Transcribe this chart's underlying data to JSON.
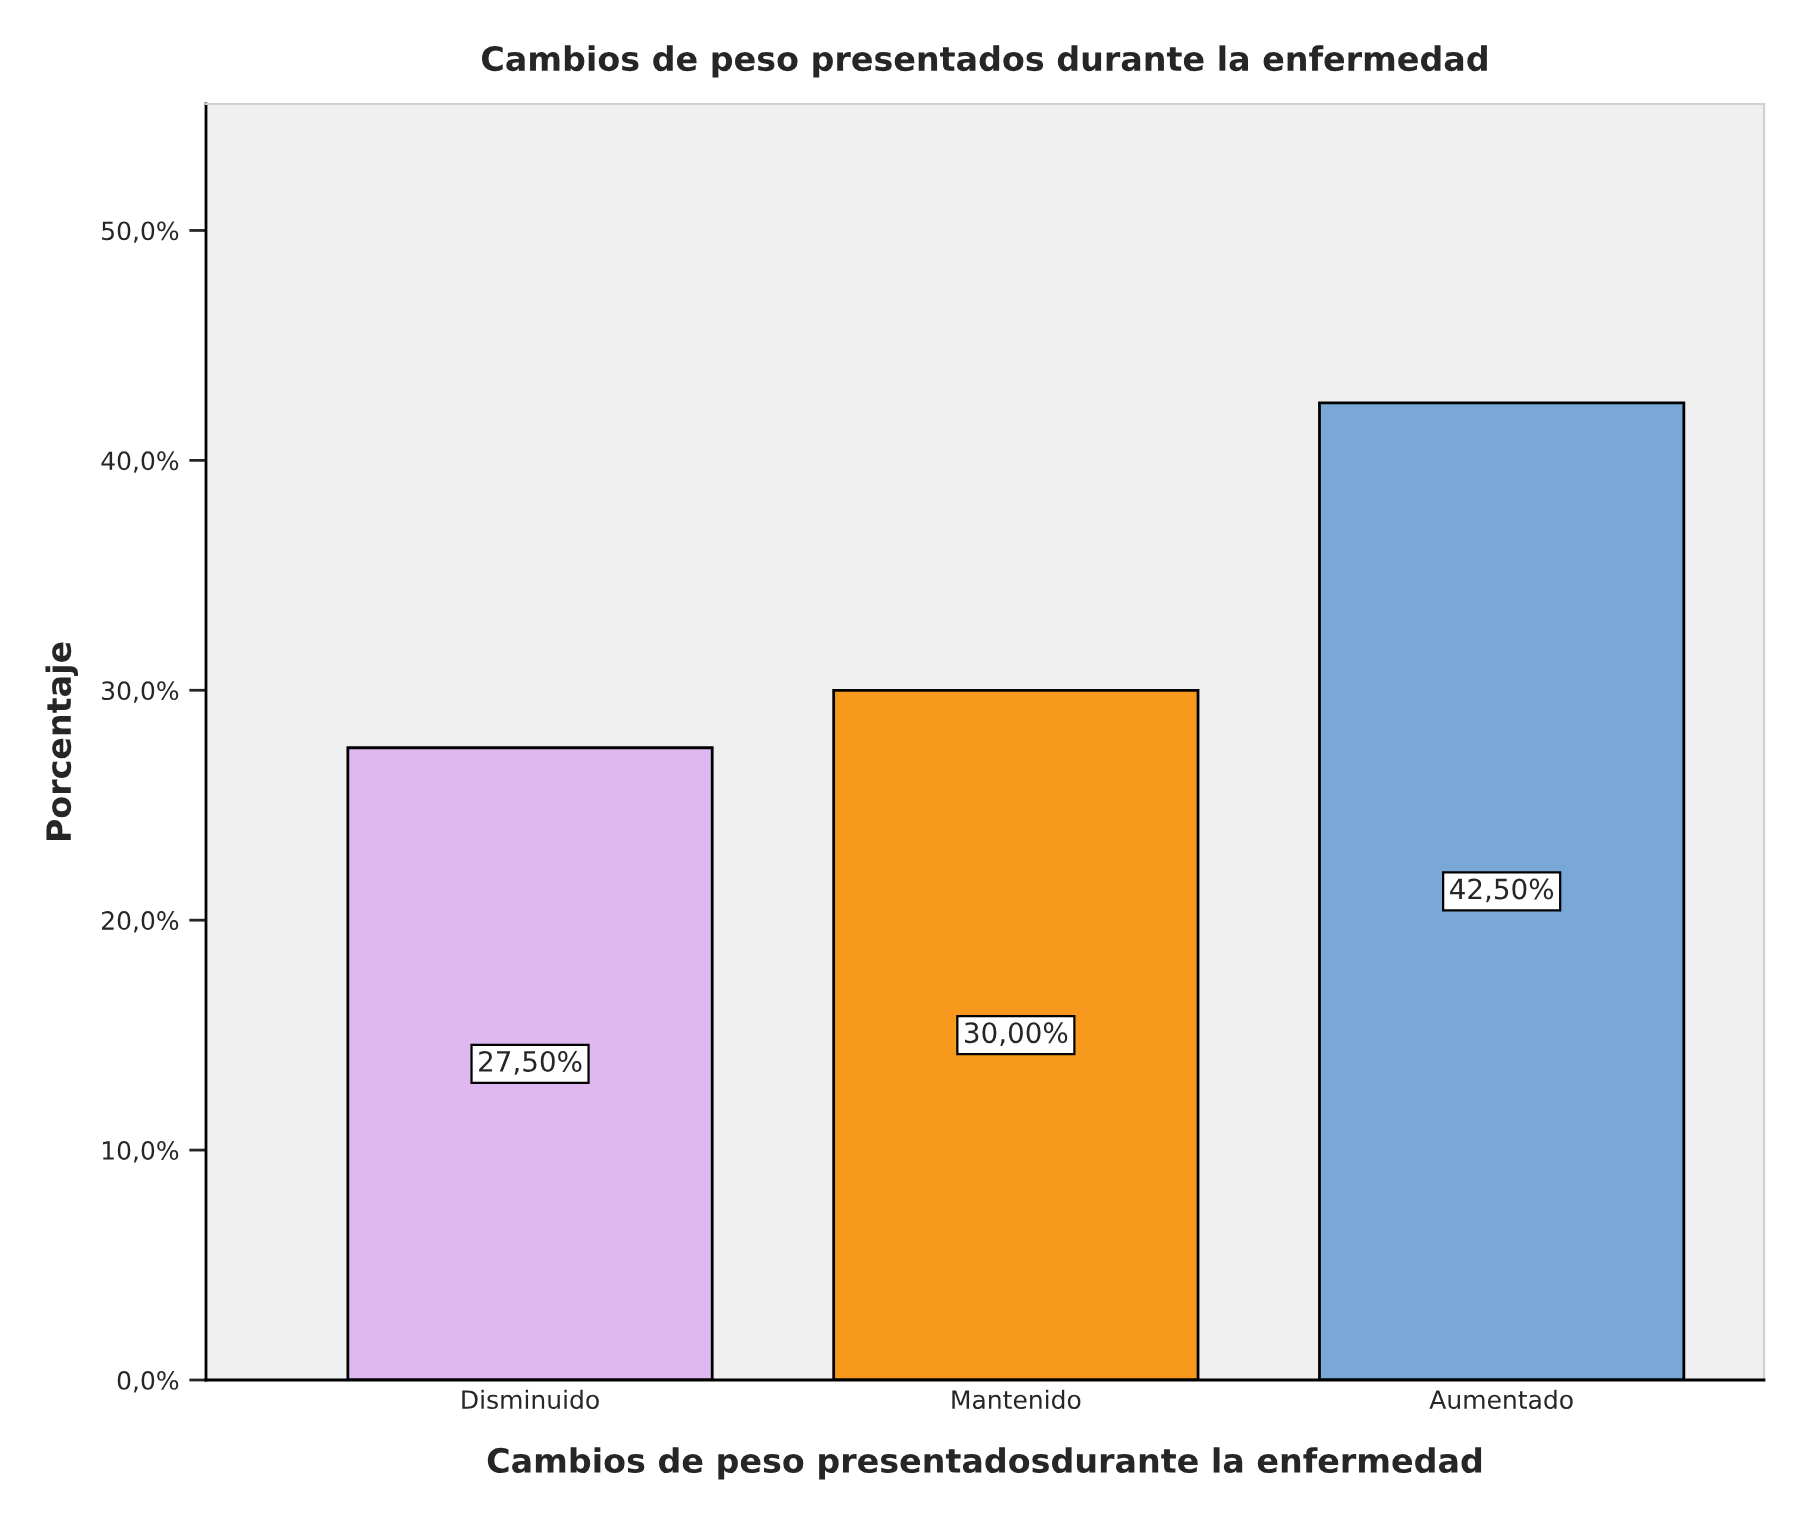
{
  "chart_data": {
    "type": "bar",
    "title": "Cambios de peso presentados durante la enfermedad",
    "xlabel": "Cambios de peso presentadosdurante la enfermedad",
    "ylabel": "Porcentaje",
    "categories": [
      "Disminuido",
      "Mantenido",
      "Aumentado"
    ],
    "values": [
      27.5,
      30.0,
      42.5
    ],
    "colors": [
      "#dfb8f0",
      "#f7991c",
      "#79a8d6"
    ],
    "value_labels": [
      "27,50%",
      "30,00%",
      "42,50%"
    ],
    "ylim": [
      0,
      55.5
    ],
    "yticks": [
      {
        "value": 0,
        "label": "0,0%"
      },
      {
        "value": 10,
        "label": "10,0%"
      },
      {
        "value": 20,
        "label": "20,0%"
      },
      {
        "value": 30,
        "label": "30,0%"
      },
      {
        "value": 40,
        "label": "40,0%"
      },
      {
        "value": 50,
        "label": "50,0%"
      }
    ],
    "grid": false,
    "legend": false
  }
}
